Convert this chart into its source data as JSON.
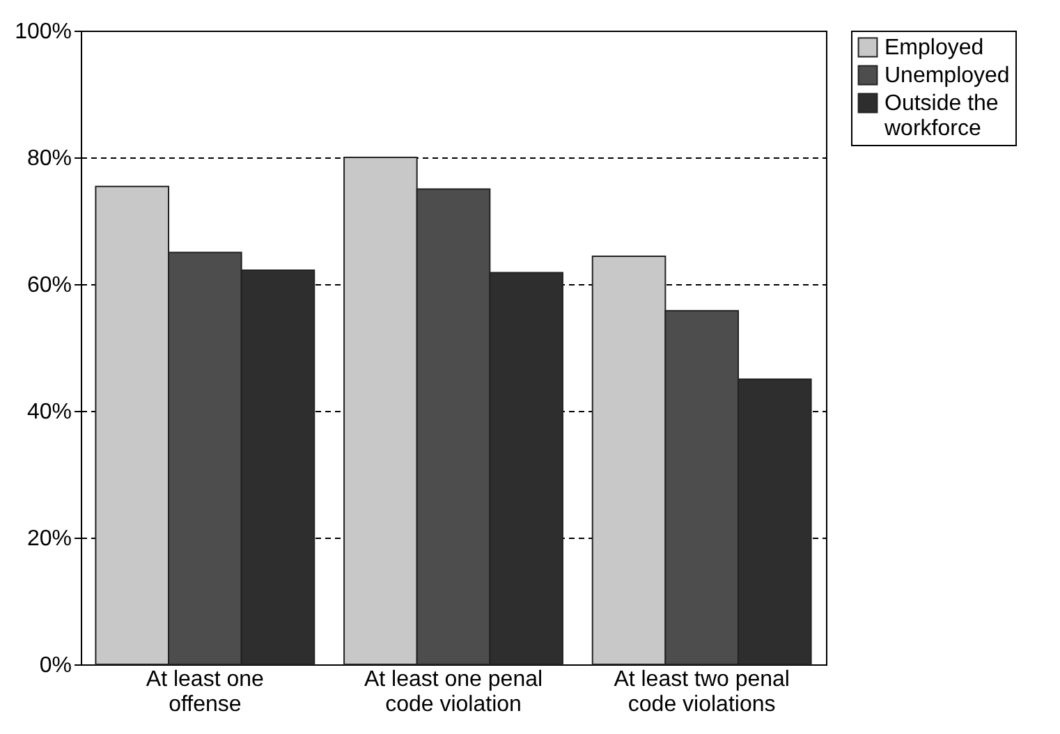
{
  "chart_data": {
    "type": "bar",
    "categories": [
      "At least one offense",
      "At least one penal code violation",
      "At least two penal code violations"
    ],
    "series": [
      {
        "name": "Employed",
        "color": "#c8c8c8",
        "values": [
          75.4,
          80,
          64.4
        ]
      },
      {
        "name": "Unemployed",
        "color": "#4d4d4d",
        "values": [
          65,
          75,
          55.8
        ]
      },
      {
        "name": "Outside the workforce",
        "color": "#2e2e2e",
        "values": [
          62.2,
          61.8,
          45
        ]
      }
    ],
    "ylim": [
      0,
      100
    ],
    "yticks": [
      {
        "value": 0,
        "label": "0%"
      },
      {
        "value": 20,
        "label": "20%"
      },
      {
        "value": 40,
        "label": "40%"
      },
      {
        "value": 60,
        "label": "60%"
      },
      {
        "value": 80,
        "label": "80%"
      },
      {
        "value": 100,
        "label": "100%"
      }
    ],
    "grid": "y",
    "line_style": "dashed",
    "legend": "right"
  }
}
